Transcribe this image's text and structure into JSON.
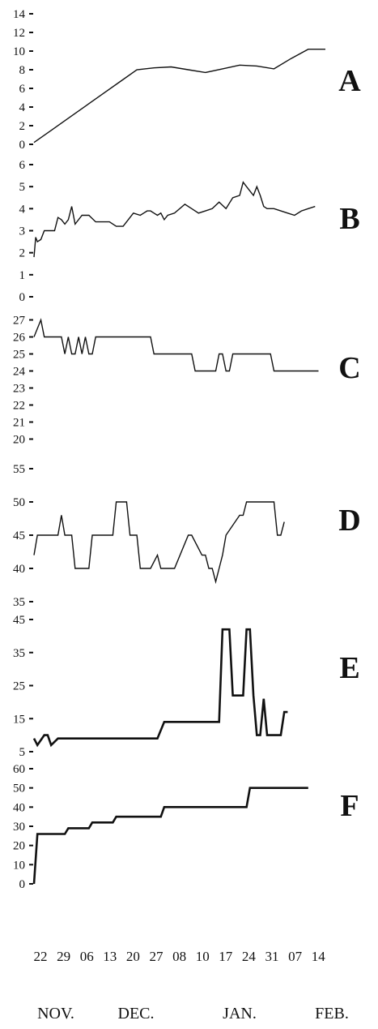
{
  "chart_data": [
    {
      "type": "line",
      "panel_label": "A",
      "x": [
        0,
        5,
        10,
        15,
        20,
        25,
        30,
        35,
        40,
        45,
        50,
        55,
        60,
        65,
        70,
        75,
        80,
        85
      ],
      "values": [
        0.2,
        1.5,
        2.8,
        4.1,
        5.4,
        6.7,
        8.0,
        8.2,
        8.3,
        8.0,
        7.7,
        8.1,
        8.5,
        8.4,
        8.1,
        9.2,
        10.2,
        10.2
      ],
      "yticks": [
        0,
        2,
        4,
        6,
        8,
        10,
        12,
        14
      ],
      "ylim": [
        0,
        14
      ],
      "grid": false
    },
    {
      "type": "line",
      "panel_label": "B",
      "x": [
        0,
        0.5,
        1,
        2,
        3,
        4,
        6,
        7,
        8,
        9,
        10,
        11,
        12,
        14,
        16,
        18,
        20,
        22,
        24,
        25,
        26,
        27,
        29,
        31,
        32,
        33,
        34,
        35,
        36,
        37,
        38,
        39,
        41,
        44,
        46,
        48,
        50,
        52,
        54,
        56,
        58,
        60,
        61,
        62,
        63,
        64,
        65,
        66,
        67,
        68,
        69,
        70,
        72,
        74,
        76,
        78,
        80,
        82
      ],
      "values": [
        1.8,
        2.7,
        2.5,
        2.6,
        3.0,
        3.0,
        3.0,
        3.6,
        3.5,
        3.3,
        3.5,
        4.1,
        3.3,
        3.7,
        3.7,
        3.4,
        3.4,
        3.4,
        3.2,
        3.2,
        3.2,
        3.4,
        3.8,
        3.7,
        3.8,
        3.9,
        3.9,
        3.8,
        3.7,
        3.8,
        3.5,
        3.7,
        3.8,
        4.2,
        4.0,
        3.8,
        3.9,
        4.0,
        4.3,
        4.0,
        4.5,
        4.6,
        5.2,
        5.0,
        4.8,
        4.6,
        5.0,
        4.6,
        4.1,
        4.0,
        4.0,
        4.0,
        3.9,
        3.8,
        3.7,
        3.9,
        4.0,
        4.1
      ],
      "yticks": [
        0,
        1,
        2,
        3,
        4,
        5,
        6
      ],
      "ylim": [
        0,
        6
      ],
      "grid": false
    },
    {
      "type": "line",
      "panel_label": "C",
      "x": [
        0,
        2,
        3,
        4,
        8,
        9,
        10,
        11,
        12,
        13,
        14,
        15,
        16,
        17,
        18,
        34,
        35,
        46,
        47,
        53,
        54,
        55,
        56,
        57,
        58,
        59,
        60,
        61,
        69,
        70,
        83
      ],
      "values": [
        26,
        27,
        26,
        26,
        26,
        25,
        26,
        25,
        25,
        26,
        25,
        26,
        25,
        25,
        26,
        26,
        25,
        25,
        24,
        24,
        25,
        25,
        24,
        24,
        25,
        25,
        25,
        25,
        25,
        24,
        24
      ],
      "yticks": [
        20,
        21,
        22,
        23,
        24,
        25,
        26,
        27
      ],
      "ylim": [
        19.5,
        27.5
      ],
      "grid": false
    },
    {
      "type": "line",
      "panel_label": "D",
      "x": [
        0,
        1,
        2,
        5,
        7,
        8,
        9,
        11,
        12,
        16,
        17,
        23,
        24,
        27,
        28,
        30,
        31,
        33,
        34,
        36,
        37,
        38,
        39,
        41,
        45,
        46,
        49,
        50,
        51,
        52,
        53,
        54,
        55,
        56,
        60,
        61,
        62,
        63,
        64,
        65,
        66,
        70,
        71,
        72,
        73
      ],
      "values": [
        42,
        45,
        45,
        45,
        45,
        48,
        45,
        45,
        40,
        40,
        45,
        45,
        50,
        50,
        45,
        45,
        40,
        40,
        40,
        42,
        40,
        40,
        40,
        40,
        45,
        45,
        42,
        42,
        40,
        40,
        38,
        40,
        42,
        45,
        48,
        48,
        50,
        50,
        50,
        50,
        50,
        50,
        45,
        45,
        47
      ],
      "yticks": [
        35,
        40,
        45,
        50,
        55
      ],
      "ylim": [
        35,
        55
      ],
      "grid": false
    },
    {
      "type": "line",
      "panel_label": "E",
      "x": [
        0,
        1,
        3,
        4,
        5,
        6,
        7,
        8,
        10,
        15,
        18,
        30,
        36,
        38,
        50,
        54,
        55,
        57,
        58,
        60,
        61,
        62,
        63,
        64,
        65,
        66,
        67,
        68,
        69,
        70,
        72,
        73,
        74
      ],
      "values": [
        9,
        7,
        10,
        10,
        7,
        8,
        9,
        9,
        9,
        9,
        9,
        9,
        9,
        14,
        14,
        14,
        42,
        42,
        22,
        22,
        22,
        42,
        42,
        22,
        10,
        10,
        21,
        10,
        10,
        10,
        10,
        17,
        17
      ],
      "yticks": [
        5,
        15,
        25,
        35,
        45
      ],
      "ylim": [
        5,
        45
      ],
      "grid": false
    },
    {
      "type": "line",
      "panel_label": "F",
      "x": [
        0,
        1,
        2,
        9,
        10,
        16,
        17,
        23,
        24,
        29,
        30,
        37,
        38,
        45,
        46,
        62,
        63,
        72,
        73,
        80
      ],
      "values": [
        0,
        26,
        26,
        26,
        29,
        29,
        32,
        32,
        35,
        35,
        35,
        35,
        40,
        40,
        40,
        40,
        50,
        50,
        50,
        50
      ],
      "yticks": [
        0,
        10,
        20,
        30,
        40,
        50,
        60
      ],
      "ylim": [
        0,
        60
      ],
      "grid": false
    }
  ],
  "x_axis": {
    "date_labels": [
      "22",
      "29",
      "06",
      "13",
      "20",
      "27",
      "08",
      "10",
      "17",
      "24",
      "31",
      "07",
      "14"
    ],
    "month_labels": [
      "NOV.",
      "DEC.",
      "JAN.",
      "FEB."
    ]
  }
}
